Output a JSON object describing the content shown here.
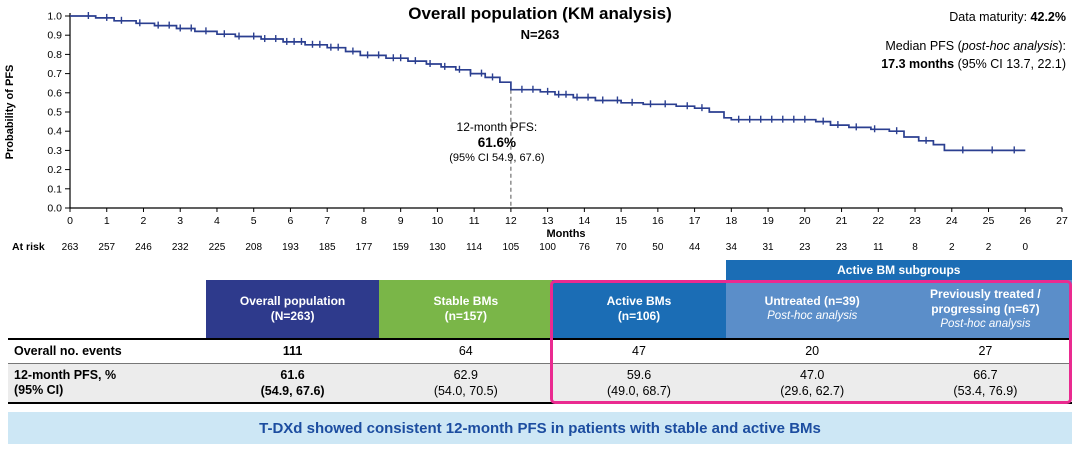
{
  "header": {
    "data_maturity_label": "Data maturity: ",
    "data_maturity_value": "42.2%",
    "median_prefix": "Median PFS (",
    "median_italic": "post-hoc analysis",
    "median_suffix": "):",
    "median_value": "17.3 months",
    "median_ci": " (95% CI 13.7, 22.1)"
  },
  "chart_data": {
    "type": "line",
    "subtype": "kaplan-meier-step",
    "title": "Overall population (KM analysis)",
    "subtitle": "N=263",
    "xlabel": "Months",
    "ylabel": "Probability of PFS",
    "xlim": [
      0,
      27
    ],
    "ylim": [
      0,
      1
    ],
    "xticks": [
      0,
      1,
      2,
      3,
      4,
      5,
      6,
      7,
      8,
      9,
      10,
      11,
      12,
      13,
      14,
      15,
      16,
      17,
      18,
      19,
      20,
      21,
      22,
      23,
      24,
      25,
      26,
      27
    ],
    "yticks": [
      0,
      0.1,
      0.2,
      0.3,
      0.4,
      0.5,
      0.6,
      0.7,
      0.8,
      0.9,
      1
    ],
    "grid": false,
    "legend_position": "none",
    "curve": {
      "name": "Overall population (N=263)",
      "color": "#2b3f90",
      "points": [
        [
          0,
          1.0
        ],
        [
          0.7,
          0.99
        ],
        [
          1.2,
          0.975
        ],
        [
          1.8,
          0.962
        ],
        [
          2.3,
          0.95
        ],
        [
          2.9,
          0.935
        ],
        [
          3.4,
          0.92
        ],
        [
          4.0,
          0.905
        ],
        [
          4.5,
          0.893
        ],
        [
          5.2,
          0.88
        ],
        [
          5.8,
          0.865
        ],
        [
          6.4,
          0.85
        ],
        [
          7.0,
          0.835
        ],
        [
          7.5,
          0.815
        ],
        [
          7.9,
          0.795
        ],
        [
          8.6,
          0.78
        ],
        [
          9.2,
          0.765
        ],
        [
          9.7,
          0.75
        ],
        [
          10.1,
          0.735
        ],
        [
          10.5,
          0.72
        ],
        [
          10.9,
          0.7
        ],
        [
          11.3,
          0.68
        ],
        [
          11.7,
          0.655
        ],
        [
          12.0,
          0.616
        ],
        [
          12.8,
          0.605
        ],
        [
          13.2,
          0.59
        ],
        [
          13.7,
          0.575
        ],
        [
          14.3,
          0.56
        ],
        [
          15.0,
          0.548
        ],
        [
          15.6,
          0.54
        ],
        [
          16.5,
          0.53
        ],
        [
          17.0,
          0.52
        ],
        [
          17.4,
          0.5
        ],
        [
          17.8,
          0.47
        ],
        [
          18.0,
          0.46
        ],
        [
          20.3,
          0.45
        ],
        [
          20.7,
          0.432
        ],
        [
          21.2,
          0.42
        ],
        [
          21.8,
          0.41
        ],
        [
          22.3,
          0.4
        ],
        [
          22.7,
          0.37
        ],
        [
          23.1,
          0.35
        ],
        [
          23.5,
          0.33
        ],
        [
          23.8,
          0.3
        ],
        [
          26.0,
          0.3
        ]
      ]
    },
    "censor_x": [
      0.5,
      1.0,
      1.4,
      1.9,
      2.4,
      2.7,
      3.0,
      3.3,
      3.7,
      4.2,
      4.6,
      5.0,
      5.3,
      5.6,
      5.9,
      6.1,
      6.3,
      6.6,
      6.8,
      7.1,
      7.3,
      7.7,
      8.1,
      8.4,
      8.8,
      9.0,
      9.4,
      9.8,
      10.2,
      10.6,
      10.9,
      11.2,
      11.5,
      12.3,
      12.6,
      13.0,
      13.3,
      13.5,
      13.8,
      14.1,
      14.5,
      14.9,
      15.3,
      15.8,
      16.2,
      16.8,
      17.2,
      18.2,
      18.5,
      18.8,
      19.1,
      19.4,
      19.7,
      20.0,
      20.5,
      20.9,
      21.4,
      21.9,
      22.5,
      23.3,
      24.3,
      25.1,
      25.7
    ],
    "annotation": {
      "x": 12,
      "y": 0.616,
      "line1": "12-month PFS:",
      "line2": "61.6%",
      "line3": "(95% CI 54.9, 67.6)"
    },
    "at_risk_label": "At risk",
    "at_risk": [
      263,
      257,
      246,
      232,
      225,
      208,
      193,
      185,
      177,
      159,
      130,
      114,
      105,
      100,
      76,
      70,
      50,
      44,
      34,
      31,
      23,
      23,
      11,
      8,
      2,
      2,
      0
    ]
  },
  "table": {
    "banner": "Active BM subgroups",
    "banner_color": "#1b6db5",
    "highlight_color": "#ea2a90",
    "columns": [
      {
        "line1": "Overall population",
        "line2": "(N=263)",
        "note": "",
        "color": "#2e3a8c"
      },
      {
        "line1": "Stable BMs",
        "line2": "(n=157)",
        "note": "",
        "color": "#7ab648"
      },
      {
        "line1": "Active BMs",
        "line2": "(n=106)",
        "note": "",
        "color": "#1b6db5"
      },
      {
        "line1": "Untreated (n=39)",
        "line2": "",
        "note": "Post-hoc analysis",
        "color": "#5b8ec9"
      },
      {
        "line1": "Previously treated /",
        "line2": "progressing (n=67)",
        "note": "Post-hoc analysis",
        "color": "#5b8ec9"
      }
    ],
    "rows": [
      {
        "label": "Overall no. events",
        "values": [
          "111",
          "64",
          "47",
          "20",
          "27"
        ]
      },
      {
        "label_line1": "12-month PFS, %",
        "label_line2": "(95% CI)",
        "values": [
          [
            "61.6",
            "(54.9, 67.6)"
          ],
          [
            "62.9",
            "(54.0, 70.5)"
          ],
          [
            "59.6",
            "(49.0, 68.7)"
          ],
          [
            "47.0",
            "(29.6, 62.7)"
          ],
          [
            "66.7",
            "(53.4, 76.9)"
          ]
        ]
      }
    ]
  },
  "footer": {
    "text": "T-DXd showed consistent 12-month PFS in patients with stable and active BMs"
  }
}
